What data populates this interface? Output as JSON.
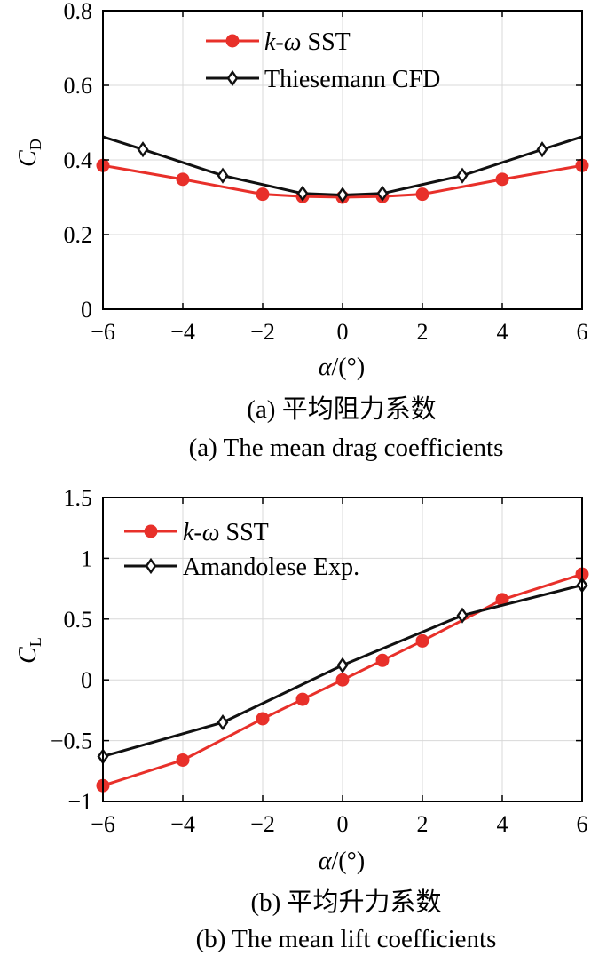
{
  "chart_data": [
    {
      "type": "line",
      "panel": "a",
      "ylabel": "C",
      "ylabel_sub": "D",
      "xlabel_symbol": "α",
      "xlabel_unit": "/(°)",
      "xlim": [
        -6,
        6
      ],
      "ylim": [
        0,
        0.8
      ],
      "xticks": [
        -6,
        -4,
        -2,
        0,
        2,
        4,
        6
      ],
      "yticks": [
        0,
        0.2,
        0.4,
        0.6,
        0.8
      ],
      "xtick_labels": [
        "−6",
        "−4",
        "−2",
        "0",
        "2",
        "4",
        "6"
      ],
      "ytick_labels": [
        "0",
        "0.2",
        "0.4",
        "0.6",
        "0.8"
      ],
      "grid": true,
      "legend_position": "top-left",
      "series": [
        {
          "name_italic": "k-ω",
          "name_rest": " SST",
          "color": "#e8302a",
          "marker": "circle",
          "x": [
            -6,
            -4,
            -2,
            -1,
            0,
            1,
            2,
            4,
            6
          ],
          "y": [
            0.385,
            0.348,
            0.308,
            0.302,
            0.3,
            0.302,
            0.308,
            0.348,
            0.385
          ]
        },
        {
          "name": "Thiesemann CFD",
          "color": "#111111",
          "marker": "diamond",
          "x": [
            -6,
            -5,
            -3,
            -1,
            0,
            1,
            3,
            5,
            6
          ],
          "y": [
            0.462,
            0.428,
            0.358,
            0.31,
            0.306,
            0.31,
            0.358,
            0.428,
            0.462
          ],
          "marker_x": [
            -5,
            -3,
            -1,
            0,
            1,
            3,
            5
          ]
        }
      ],
      "caption_cn": "(a) 平均阻力系数",
      "caption_en": "(a) The mean drag coefficients"
    },
    {
      "type": "line",
      "panel": "b",
      "ylabel": "C",
      "ylabel_sub": "L",
      "xlabel_symbol": "α",
      "xlabel_unit": "/(°)",
      "xlim": [
        -6,
        6
      ],
      "ylim": [
        -1,
        1.5
      ],
      "xticks": [
        -6,
        -4,
        -2,
        0,
        2,
        4,
        6
      ],
      "yticks": [
        -1,
        -0.5,
        0,
        0.5,
        1,
        1.5
      ],
      "xtick_labels": [
        "−6",
        "−4",
        "−2",
        "0",
        "2",
        "4",
        "6"
      ],
      "ytick_labels": [
        "−1",
        "−0.5",
        "0",
        "0.5",
        "1",
        "1.5"
      ],
      "grid": true,
      "legend_position": "top-left",
      "series": [
        {
          "name_italic": "k-ω",
          "name_rest": " SST",
          "color": "#e8302a",
          "marker": "circle",
          "x": [
            -6,
            -4,
            -2,
            -1,
            0,
            1,
            2,
            4,
            6
          ],
          "y": [
            -0.87,
            -0.66,
            -0.32,
            -0.16,
            0.0,
            0.16,
            0.32,
            0.66,
            0.87
          ]
        },
        {
          "name": "Amandolese Exp.",
          "color": "#111111",
          "marker": "diamond",
          "x": [
            -6,
            -3,
            0,
            3,
            6
          ],
          "y": [
            -0.63,
            -0.35,
            0.12,
            0.53,
            0.78
          ],
          "marker_x": [
            -6,
            -3,
            0,
            3,
            6
          ]
        }
      ],
      "caption_cn": "(b) 平均升力系数",
      "caption_en": "(b) The mean lift coefficients"
    }
  ]
}
